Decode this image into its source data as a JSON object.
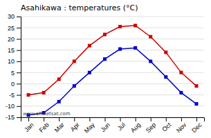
{
  "chart_data": {
    "type": "line",
    "title": "Asahikawa : temperatures (°C)",
    "categories": [
      "Jan",
      "Feb",
      "Mar",
      "Apr",
      "May",
      "Jun",
      "Jul",
      "Aug",
      "Sep",
      "Oct",
      "Nov",
      "Dec"
    ],
    "series": [
      {
        "color": "#cc0000",
        "values": [
          -5,
          -4,
          2,
          10,
          17,
          22,
          25.5,
          26,
          21,
          14,
          5,
          -1
        ]
      },
      {
        "color": "#0000cc",
        "values": [
          -14,
          -13,
          -8,
          -1,
          5,
          11,
          15.5,
          16,
          10,
          3,
          -4,
          -9
        ]
      }
    ],
    "ylim": [
      -15,
      30
    ],
    "yticks": [
      -15,
      -10,
      -5,
      0,
      5,
      10,
      15,
      20,
      25,
      30
    ],
    "grid": true,
    "marker": "square",
    "line_style": "solid",
    "annotations": [
      "www.allmetsat.com"
    ]
  }
}
